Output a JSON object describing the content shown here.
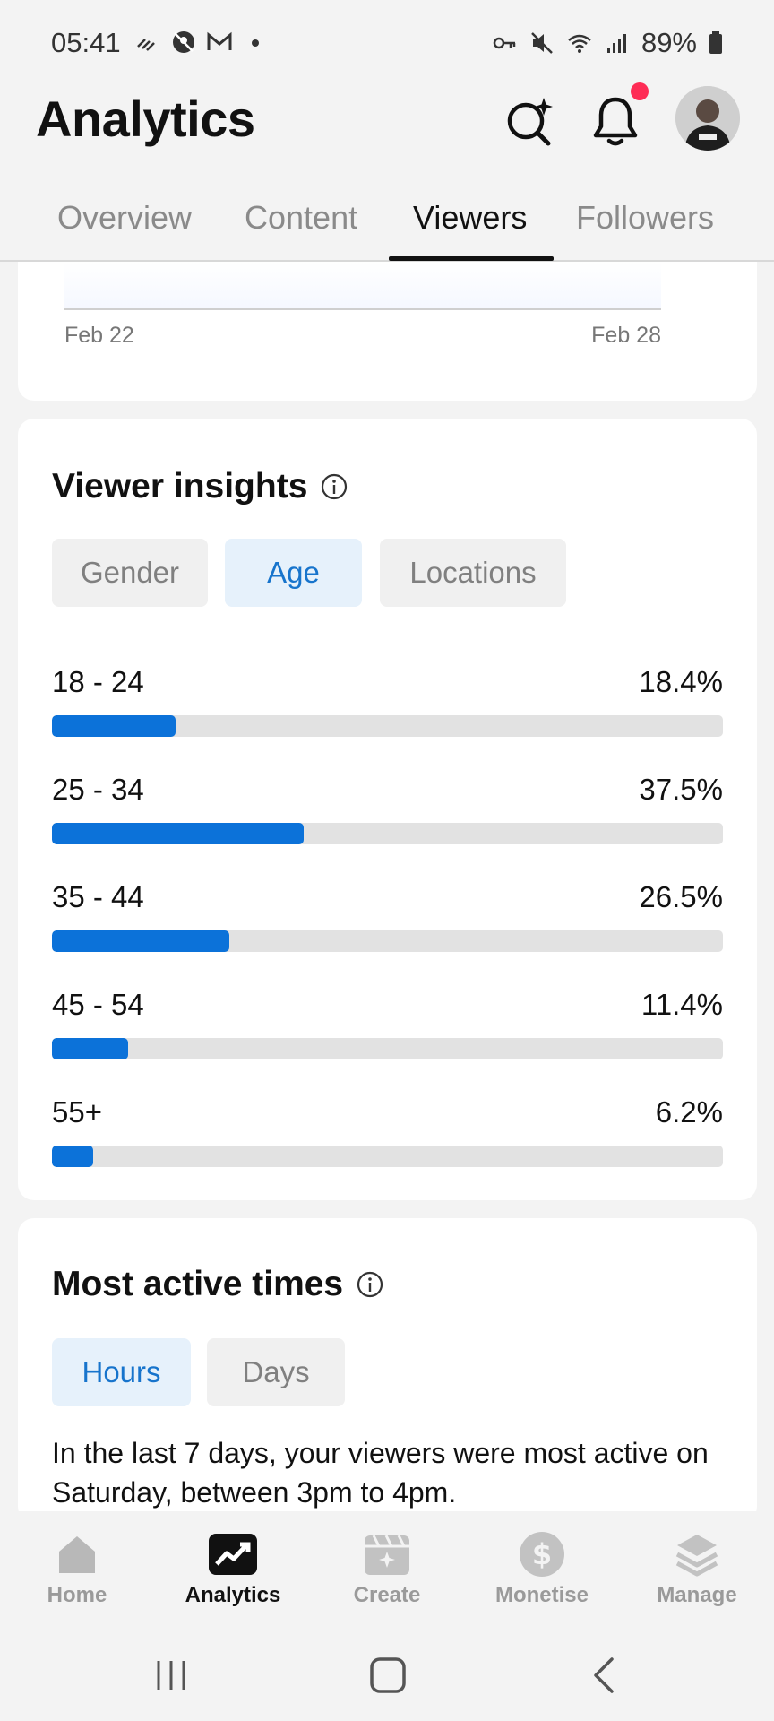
{
  "status_bar": {
    "time": "05:41",
    "battery": "89%",
    "left_icons": [
      "signal-dots-icon",
      "no-location-icon",
      "gmail-icon",
      "dot-icon"
    ],
    "right_icons": [
      "key-icon",
      "mute-icon",
      "wifi-icon",
      "cell-signal-icon",
      "battery-icon"
    ]
  },
  "header": {
    "title": "Analytics",
    "icons": [
      "search-sparkle-icon",
      "bell-icon",
      "avatar"
    ]
  },
  "tabs": [
    {
      "label": "Overview",
      "active": false
    },
    {
      "label": "Content",
      "active": false
    },
    {
      "label": "Viewers",
      "active": true
    },
    {
      "label": "Followers",
      "active": false
    }
  ],
  "chart_data": {
    "type": "area",
    "x_labels": [
      "Feb 22",
      "Feb 28"
    ]
  },
  "viewer_insights": {
    "title": "Viewer insights",
    "chips": [
      {
        "label": "Gender",
        "active": false
      },
      {
        "label": "Age",
        "active": true
      },
      {
        "label": "Locations",
        "active": false
      }
    ],
    "age_groups": [
      {
        "label": "18 - 24",
        "value_text": "18.4%",
        "value": 18.4
      },
      {
        "label": "25 - 34",
        "value_text": "37.5%",
        "value": 37.5
      },
      {
        "label": "35 - 44",
        "value_text": "26.5%",
        "value": 26.5
      },
      {
        "label": "45 - 54",
        "value_text": "11.4%",
        "value": 11.4
      },
      {
        "label": "55+",
        "value_text": "6.2%",
        "value": 6.2
      }
    ],
    "accent_color": "#0c72d9"
  },
  "most_active": {
    "title": "Most active times",
    "chips": [
      {
        "label": "Hours",
        "active": true
      },
      {
        "label": "Days",
        "active": false
      }
    ],
    "description": "In the last 7 days, your viewers were most active on Saturday, between 3pm to 4pm."
  },
  "bottom_nav": [
    {
      "label": "Home",
      "icon": "home-icon",
      "active": false
    },
    {
      "label": "Analytics",
      "icon": "analytics-icon",
      "active": true
    },
    {
      "label": "Create",
      "icon": "create-icon",
      "active": false
    },
    {
      "label": "Monetise",
      "icon": "dollar-icon",
      "active": false
    },
    {
      "label": "Manage",
      "icon": "layers-icon",
      "active": false
    }
  ]
}
